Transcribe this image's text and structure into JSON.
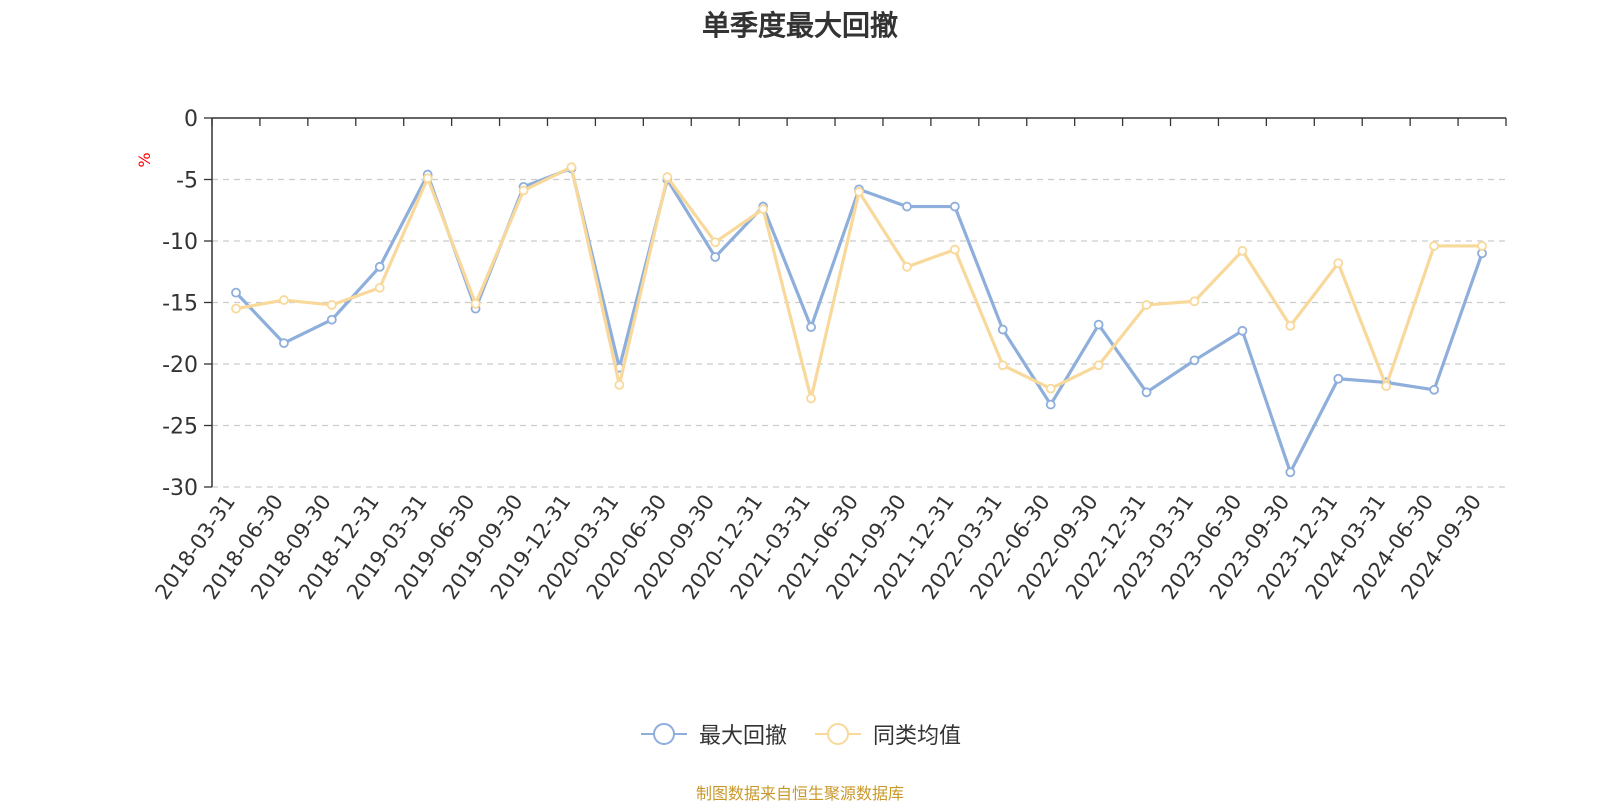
{
  "chart_data": {
    "type": "line",
    "title": "单季度最大回撤",
    "ylabel": "%",
    "xlabel": "",
    "ylim": [
      -30,
      0
    ],
    "yticks": [
      0,
      -5,
      -10,
      -15,
      -20,
      -25,
      -30
    ],
    "grid": true,
    "legend_position": "bottom-center",
    "categories": [
      "2018-03-31",
      "2018-06-30",
      "2018-09-30",
      "2018-12-31",
      "2019-03-31",
      "2019-06-30",
      "2019-09-30",
      "2019-12-31",
      "2020-03-31",
      "2020-06-30",
      "2020-09-30",
      "2020-12-31",
      "2021-03-31",
      "2021-06-30",
      "2021-09-30",
      "2021-12-31",
      "2022-03-31",
      "2022-06-30",
      "2022-09-30",
      "2022-12-31",
      "2023-03-31",
      "2023-06-30",
      "2023-09-30",
      "2023-12-31",
      "2024-03-31",
      "2024-06-30",
      "2024-09-30"
    ],
    "series": [
      {
        "name": "最大回撤",
        "color": "#8eaedb",
        "values": [
          -14.2,
          -18.3,
          -16.4,
          -12.1,
          -4.6,
          -15.5,
          -5.6,
          -4.1,
          -20.3,
          -5.0,
          -11.3,
          -7.2,
          -17.0,
          -5.8,
          -7.2,
          -7.2,
          -17.2,
          -23.3,
          -16.8,
          -22.3,
          -19.7,
          -17.3,
          -28.8,
          -21.2,
          -21.5,
          -22.1,
          -11.0
        ]
      },
      {
        "name": "同类均值",
        "color": "#f8d99b",
        "values": [
          -15.5,
          -14.8,
          -15.2,
          -13.8,
          -4.9,
          -15.1,
          -5.9,
          -4.0,
          -21.7,
          -4.8,
          -10.1,
          -7.4,
          -22.8,
          -6.0,
          -12.1,
          -10.7,
          -20.1,
          -22.0,
          -20.1,
          -15.2,
          -14.9,
          -10.8,
          -16.9,
          -11.8,
          -21.8,
          -10.4,
          -10.4
        ]
      }
    ]
  },
  "source_note": "制图数据来自恒生聚源数据库",
  "colors": {
    "axis": "#333333",
    "grid": "#cccccc",
    "ylabel": "#ff0000",
    "source": "#c9982b"
  }
}
